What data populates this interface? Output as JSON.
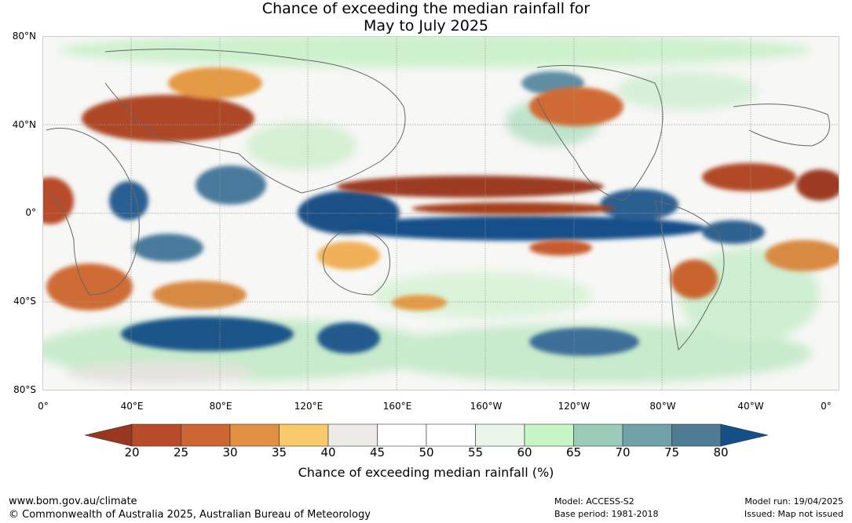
{
  "title": {
    "line1": "Chance of exceeding the median rainfall for",
    "line2": "May to July 2025"
  },
  "map": {
    "lat_labels": [
      "80°N",
      "40°N",
      "0°",
      "40°S",
      "80°S"
    ],
    "lon_labels": [
      "0°",
      "40°E",
      "80°E",
      "120°E",
      "160°E",
      "160°W",
      "120°W",
      "80°W",
      "40°W",
      "0°"
    ]
  },
  "colorbar": {
    "ticks": [
      "20",
      "25",
      "30",
      "35",
      "40",
      "45",
      "50",
      "55",
      "60",
      "65",
      "70",
      "75",
      "80"
    ],
    "colors": [
      "#9b3a22",
      "#b84c2a",
      "#cc6532",
      "#e09040",
      "#f8c96a",
      "#ecebe8",
      "#ffffff",
      "#ffffff",
      "#e8f5e8",
      "#c6f5c6",
      "#9acbb8",
      "#6ea2a8",
      "#4f7b95"
    ],
    "low_color": "#983620",
    "high_color": "#154f88",
    "label": "Chance of exceeding median rainfall (%)"
  },
  "footer": {
    "url": "www.bom.gov.au/climate",
    "copyright": "© Commonwealth of Australia 2025, Australian Bureau of Meteorology",
    "model": "Model: ACCESS-S2",
    "base_period": "Base period: 1981-2018",
    "model_run": "Model run: 19/04/2025",
    "issued": "Issued: Map not issued"
  }
}
